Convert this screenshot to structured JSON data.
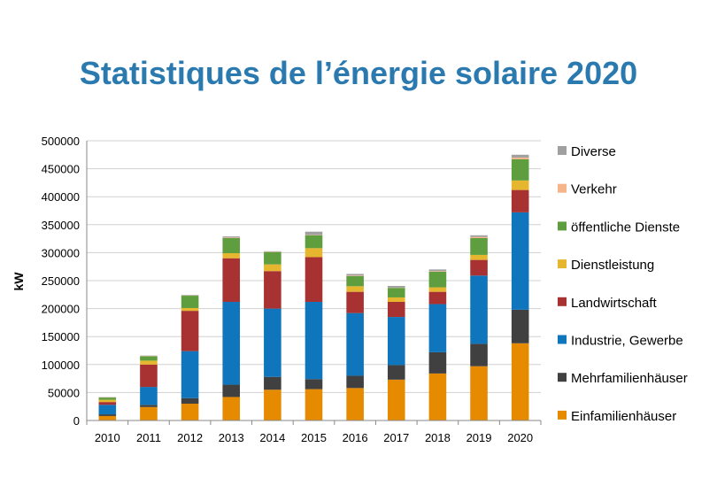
{
  "title": "Statistiques de l’énergie solaire 2020",
  "chart_data": {
    "type": "bar",
    "stacked": true,
    "title": "Statistiques de l’énergie solaire 2020",
    "xlabel": "",
    "ylabel": "kW",
    "ylim": [
      0,
      500000
    ],
    "yticks": [
      0,
      50000,
      100000,
      150000,
      200000,
      250000,
      300000,
      350000,
      400000,
      450000,
      500000
    ],
    "grid": true,
    "legend": "right",
    "categories": [
      "2010",
      "2011",
      "2012",
      "2013",
      "2014",
      "2015",
      "2016",
      "2017",
      "2018",
      "2019",
      "2020"
    ],
    "series": [
      {
        "name": "Einfamilienhäuser",
        "color": "#e68a00",
        "values": [
          8000,
          24000,
          30000,
          42000,
          55000,
          56000,
          58000,
          73000,
          84000,
          97000,
          138000
        ]
      },
      {
        "name": "Mehrfamilienhäuser",
        "color": "#404040",
        "values": [
          3000,
          4000,
          10000,
          22000,
          23000,
          18000,
          22000,
          26000,
          38000,
          40000,
          60000
        ]
      },
      {
        "name": "Industrie, Gewerbe",
        "color": "#0f75bc",
        "values": [
          17000,
          32000,
          84000,
          148000,
          122000,
          138000,
          112000,
          86000,
          86000,
          122000,
          174000
        ]
      },
      {
        "name": "Landwirtschaft",
        "color": "#a83232",
        "values": [
          5000,
          40000,
          72000,
          78000,
          67000,
          80000,
          38000,
          27000,
          22000,
          28000,
          40000
        ]
      },
      {
        "name": "Dienstleistung",
        "color": "#e6b62e",
        "values": [
          4000,
          7000,
          5000,
          9000,
          12000,
          16000,
          10000,
          8000,
          8000,
          9000,
          17000
        ]
      },
      {
        "name": "öffentliche Dienste",
        "color": "#5e9e3e",
        "values": [
          4000,
          8000,
          22000,
          27000,
          22000,
          23000,
          18000,
          17000,
          28000,
          30000,
          38000
        ]
      },
      {
        "name": "Verkehr",
        "color": "#f5b48a",
        "values": [
          500,
          500,
          500,
          1000,
          500,
          500,
          1000,
          500,
          1000,
          2000,
          3000
        ]
      },
      {
        "name": "Diverse",
        "color": "#a0a0a0",
        "values": [
          500,
          500,
          1000,
          2000,
          1000,
          6000,
          3000,
          3000,
          3000,
          3000,
          5000
        ]
      }
    ]
  }
}
